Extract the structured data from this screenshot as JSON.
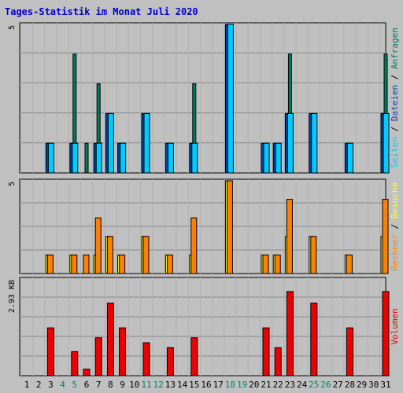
{
  "chart_data": {
    "type": "bar",
    "title": "Tages-Statistik im Monat Juli 2020",
    "categories": [
      "1",
      "2",
      "3",
      "4",
      "5",
      "6",
      "7",
      "8",
      "9",
      "10",
      "11",
      "12",
      "13",
      "14",
      "15",
      "16",
      "17",
      "18",
      "19",
      "20",
      "21",
      "22",
      "23",
      "24",
      "25",
      "26",
      "27",
      "28",
      "29",
      "30",
      "31"
    ],
    "weekend_days": [
      "4",
      "5",
      "11",
      "12",
      "18",
      "19",
      "25",
      "26"
    ],
    "panels": [
      {
        "name": "top",
        "scale_label": "5",
        "ymax": 5,
        "series": [
          {
            "name": "Anfragen",
            "color": "#007f5f",
            "values": [
              0,
              0,
              1,
              0,
              4,
              1,
              3,
              2,
              1,
              0,
              2,
              0,
              1,
              0,
              3,
              0,
              0,
              5,
              0,
              0,
              1,
              1,
              4,
              0,
              2,
              0,
              0,
              1,
              0,
              0,
              4
            ]
          },
          {
            "name": "Dateien",
            "color": "#0044aa",
            "values": [
              0,
              0,
              1,
              0,
              1,
              0,
              1,
              2,
              1,
              0,
              2,
              0,
              1,
              0,
              1,
              0,
              0,
              5,
              0,
              0,
              1,
              1,
              2,
              0,
              2,
              0,
              0,
              1,
              0,
              0,
              2
            ]
          },
          {
            "name": "Seiten",
            "color": "#00ccff",
            "values": [
              0,
              0,
              1,
              0,
              1,
              0,
              1,
              2,
              1,
              0,
              2,
              0,
              1,
              0,
              1,
              0,
              0,
              5,
              0,
              0,
              1,
              1,
              2,
              0,
              2,
              0,
              0,
              1,
              0,
              0,
              2
            ]
          }
        ]
      },
      {
        "name": "middle",
        "scale_label": "5",
        "ymax": 5,
        "series": [
          {
            "name": "Besuche",
            "color": "#ffff33",
            "values": [
              0,
              0,
              1,
              0,
              1,
              0,
              1,
              2,
              1,
              0,
              2,
              0,
              1,
              0,
              1,
              0,
              0,
              5,
              0,
              0,
              1,
              1,
              2,
              0,
              2,
              0,
              0,
              1,
              0,
              0,
              2
            ]
          },
          {
            "name": "Rechner",
            "color": "#ff8000",
            "values": [
              0,
              0,
              1,
              0,
              1,
              1,
              3,
              2,
              1,
              0,
              2,
              0,
              1,
              0,
              3,
              0,
              0,
              5,
              0,
              0,
              1,
              1,
              4,
              0,
              2,
              0,
              0,
              1,
              0,
              0,
              4
            ]
          }
        ]
      },
      {
        "name": "bottom",
        "scale_label": "2.93 KB",
        "ymax": 2.93,
        "series": [
          {
            "name": "Volumen",
            "color": "#ee0000",
            "values": [
              0,
              0,
              1.45,
              0,
              0.73,
              0.2,
              1.15,
              2.2,
              1.45,
              0,
              1,
              0,
              0.85,
              0,
              1.15,
              0,
              0,
              0,
              0,
              0,
              1.45,
              0.85,
              2.55,
              0,
              2.2,
              0,
              0,
              1.45,
              0,
              0,
              2.55
            ]
          }
        ]
      }
    ],
    "right_label_separator": " / "
  },
  "colors": {
    "background": "#c0c0c0",
    "title": "#0000cc",
    "weekend": "#00806a",
    "text": "#000000"
  }
}
